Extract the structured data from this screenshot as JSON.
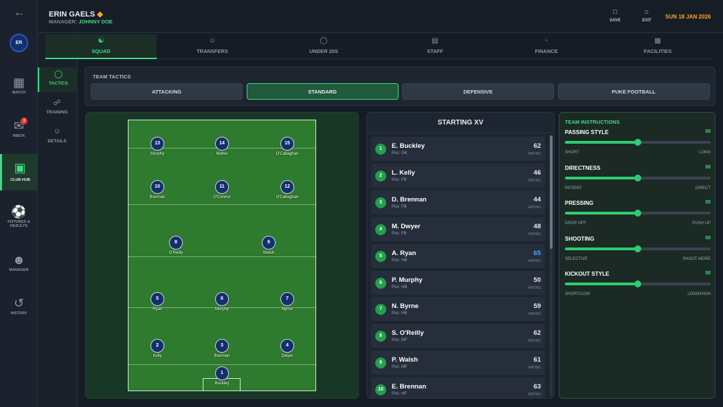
{
  "header": {
    "team": "ERIN GAELS",
    "manager_label": "MANAGER:",
    "manager": "JOHNNY DOE",
    "save": "SAVE",
    "exit": "EXIT",
    "date": "SUN 18 JAN 2026"
  },
  "sidebar": {
    "avatar": "ER",
    "items": [
      {
        "label": "MATCH"
      },
      {
        "label": "INBOX",
        "badge": 3
      },
      {
        "label": "CLUB HUB"
      },
      {
        "label": "FIXTURES & RESULTS"
      },
      {
        "label": "MANAGER"
      },
      {
        "label": "HISTORY"
      }
    ]
  },
  "tabs": [
    "SQUAD",
    "TRANSFERS",
    "UNDER 20S",
    "STAFF",
    "FINANCE",
    "FACILITIES"
  ],
  "subnav": [
    "TACTICS",
    "TRAINING",
    "DETAILS"
  ],
  "tactics": {
    "title": "TEAM TACTICS",
    "options": [
      "ATTACKING",
      "STANDARD",
      "DEFENSIVE",
      "PUKE FOOTBALL"
    ]
  },
  "pitch": {
    "players": [
      {
        "number": 13,
        "name": "Murphy"
      },
      {
        "number": 14,
        "name": "Maher"
      },
      {
        "number": 15,
        "name": "O'Callaghan"
      },
      {
        "number": 10,
        "name": "Brennan"
      },
      {
        "number": 11,
        "name": "O'Connor"
      },
      {
        "number": 12,
        "name": "O'Callaghan"
      },
      {
        "number": 8,
        "name": "O'Reilly"
      },
      {
        "number": 9,
        "name": "Walsh"
      },
      {
        "number": 5,
        "name": "Ryan"
      },
      {
        "number": 6,
        "name": "Murphy"
      },
      {
        "number": 7,
        "name": "Byrne"
      },
      {
        "number": 2,
        "name": "Kelly"
      },
      {
        "number": 3,
        "name": "Brennan"
      },
      {
        "number": 4,
        "name": "Dwyer"
      },
      {
        "number": 1,
        "name": "Buckley"
      }
    ]
  },
  "starting": {
    "title": "STARTING XV",
    "pos_label": "Pos:",
    "rating_label": "RATING",
    "players": [
      {
        "number": 1,
        "name": "E. Buckley",
        "pos": "GK",
        "rating": 62
      },
      {
        "number": 2,
        "name": "L. Kelly",
        "pos": "FB",
        "rating": 46
      },
      {
        "number": 3,
        "name": "D. Brennan",
        "pos": "FB",
        "rating": 44
      },
      {
        "number": 4,
        "name": "M. Dwyer",
        "pos": "FB",
        "rating": 48
      },
      {
        "number": 5,
        "name": "A. Ryan",
        "pos": "HB",
        "rating": 65,
        "rating_color": "#4ea3ff"
      },
      {
        "number": 6,
        "name": "P. Murphy",
        "pos": "HB",
        "rating": 50
      },
      {
        "number": 7,
        "name": "N. Byrne",
        "pos": "HB",
        "rating": 59
      },
      {
        "number": 8,
        "name": "S. O'Reilly",
        "pos": "MF",
        "rating": 62
      },
      {
        "number": 9,
        "name": "P. Walsh",
        "pos": "MF",
        "rating": 61
      },
      {
        "number": 10,
        "name": "E. Brennan",
        "pos": "HF",
        "rating": 63
      }
    ]
  },
  "instructions": {
    "title": "TEAM INSTRUCTIONS",
    "items": [
      {
        "name": "PASSING STYLE",
        "value": 50,
        "min": "SHORT",
        "max": "LONG"
      },
      {
        "name": "DIRECTNESS",
        "value": 50,
        "min": "PATIENT",
        "max": "DIRECT"
      },
      {
        "name": "PRESSING",
        "value": 50,
        "min": "DROP OFF",
        "max": "PUSH UP"
      },
      {
        "name": "SHOOTING",
        "value": 50,
        "min": "SELECTIVE",
        "max": "SHOOT MORE"
      },
      {
        "name": "KICKOUT STYLE",
        "value": 50,
        "min": "SHORT/LOW",
        "max": "LONG/HIGH"
      }
    ]
  }
}
